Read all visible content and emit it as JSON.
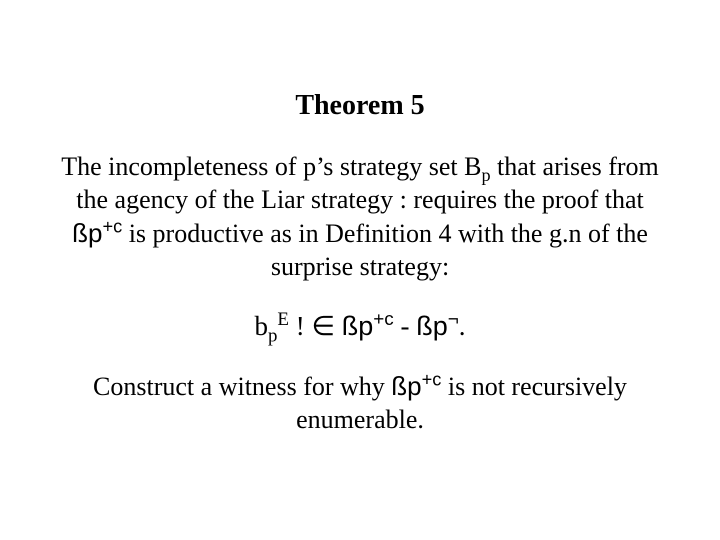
{
  "title": "Theorem 5",
  "para1": {
    "t1": "The incompleteness of  p’s strategy set B",
    "sub1": "p",
    "t2": " that arises from the agency of the Liar strategy : requires the proof that ",
    "bp1": "ßp",
    "sup1": "+c",
    "t3": " is productive as in Definition 4 with the g.n of the surprise strategy:"
  },
  "formula": {
    "b": "b",
    "sub": "p",
    "supE": "E",
    "bang": " ! ",
    "in": "∈",
    "sp1": " ",
    "bp1": "ßp",
    "sup1": "+c",
    "minus": " - ",
    "bp2": "ßp",
    "sup2": "¬",
    "dot": "."
  },
  "para2": {
    "t1": "Construct a witness for why ",
    "bp": "ßp",
    "sup": "+c",
    "t2": " is not recursively enumerable."
  },
  "style": {
    "background": "#ffffff",
    "text_color": "#000000",
    "title_fontsize": 28,
    "body_fontsize": 26,
    "font_family": "Times New Roman"
  }
}
